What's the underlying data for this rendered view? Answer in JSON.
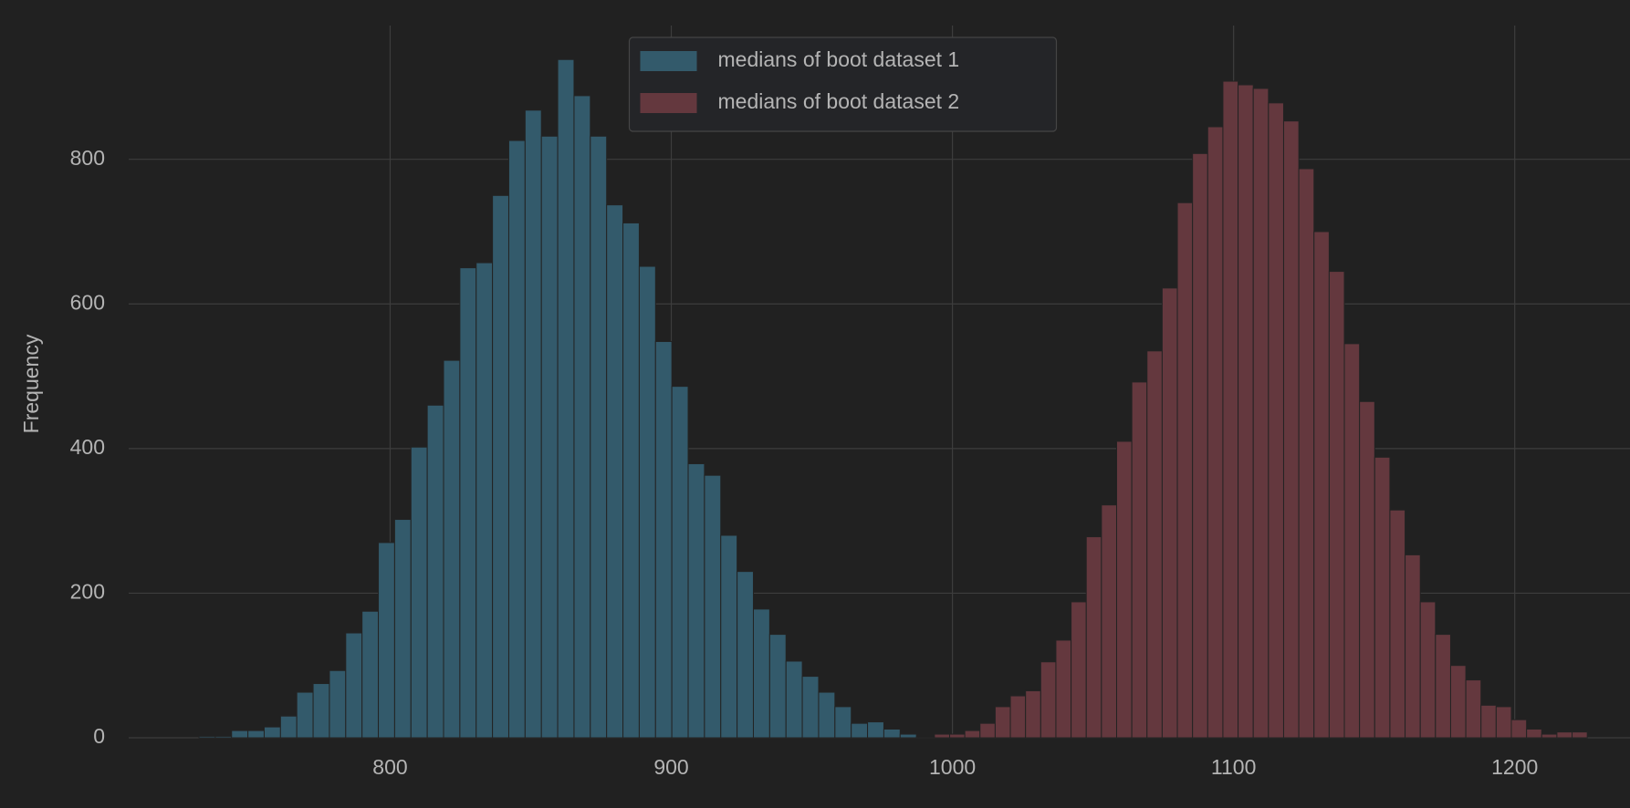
{
  "chart_data": {
    "type": "histogram",
    "ylabel": "Frequency",
    "xlim": [
      707,
      1241
    ],
    "ylim": [
      0,
      985
    ],
    "xticks": [
      800,
      900,
      1000,
      1100,
      1200
    ],
    "yticks": [
      0,
      200,
      400,
      600,
      800
    ],
    "grid": true,
    "legend": "upper center",
    "series": [
      {
        "name": "medians of boot dataset 1",
        "color": "#335a6b",
        "bins": [
          732.0,
          737.8,
          743.6,
          749.4,
          755.2,
          761.0,
          766.8,
          772.6,
          778.4,
          784.2,
          790.0,
          795.8,
          801.6,
          807.4,
          813.2,
          819.0,
          824.8,
          830.6,
          836.4,
          842.2,
          848.0,
          853.8,
          859.6,
          865.4,
          871.2,
          877.0,
          882.8,
          888.6,
          894.4,
          900.2,
          906.0,
          911.8,
          917.6,
          923.4,
          929.2,
          935.0,
          940.8,
          946.6,
          952.4,
          958.2,
          964.0,
          969.8,
          975.6,
          981.4,
          987.2,
          993.0
        ],
        "values": [
          2,
          2,
          10,
          10,
          15,
          30,
          63,
          75,
          93,
          145,
          175,
          270,
          302,
          402,
          460,
          522,
          650,
          657,
          750,
          826,
          868,
          832,
          938,
          888,
          832,
          737,
          712,
          652,
          548,
          486,
          379,
          363,
          280,
          230,
          178,
          143,
          106,
          85,
          63,
          43,
          20,
          22,
          12,
          5,
          1
        ]
      },
      {
        "name": "medians of boot dataset 2",
        "color": "#64383e",
        "bins": [
          988.2,
          993.6,
          999.0,
          1004.4,
          1009.8,
          1015.2,
          1020.6,
          1026.0,
          1031.4,
          1036.8,
          1042.2,
          1047.6,
          1053.0,
          1058.4,
          1063.8,
          1069.2,
          1074.6,
          1080.0,
          1085.4,
          1090.8,
          1096.2,
          1101.6,
          1107.0,
          1112.4,
          1117.8,
          1123.2,
          1128.6,
          1134.0,
          1139.4,
          1144.8,
          1150.2,
          1155.6,
          1161.0,
          1166.4,
          1171.8,
          1177.2,
          1182.6,
          1188.0,
          1193.4,
          1198.8,
          1204.2,
          1209.6,
          1215.0,
          1220.4,
          1225.8
        ],
        "values": [
          1,
          5,
          5,
          10,
          20,
          43,
          58,
          65,
          105,
          135,
          188,
          278,
          322,
          410,
          492,
          535,
          622,
          740,
          808,
          845,
          908,
          903,
          898,
          878,
          853,
          787,
          700,
          645,
          545,
          465,
          388,
          315,
          253,
          188,
          143,
          100,
          80,
          45,
          43,
          25,
          12,
          5,
          8,
          8
        ]
      }
    ]
  }
}
